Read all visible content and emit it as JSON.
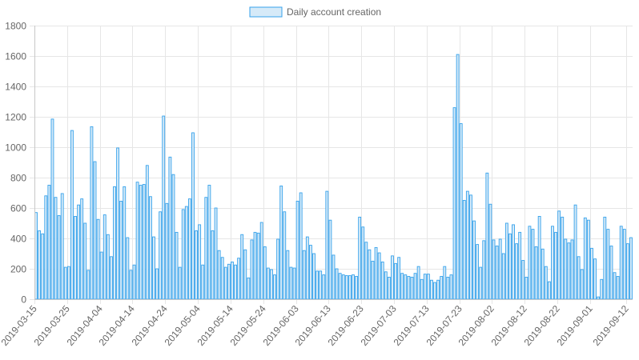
{
  "chart_data": {
    "type": "bar",
    "legend": {
      "label": "Daily account creation",
      "position": "top"
    },
    "colors": {
      "bar_fill": "#d6eaf8",
      "bar_stroke": "#36a2eb",
      "grid": "#e6e6e6",
      "axis": "#c8c8c8",
      "text": "#666666"
    },
    "ylim": [
      0,
      1800
    ],
    "y_ticks": [
      0,
      200,
      400,
      600,
      800,
      1000,
      1200,
      1400,
      1600,
      1800
    ],
    "grid": true,
    "x_start": "2019-03-15",
    "x_tick_labels": [
      "2019-03-15",
      "2019-03-25",
      "2019-04-04",
      "2019-04-14",
      "2019-04-24",
      "2019-05-04",
      "2019-05-14",
      "2019-05-24",
      "2019-06-03",
      "2019-06-13",
      "2019-06-23",
      "2019-07-03",
      "2019-07-13",
      "2019-07-23",
      "2019-08-02",
      "2019-08-12",
      "2019-08-22",
      "2019-09-01",
      "2019-09-12"
    ],
    "values": [
      570,
      450,
      430,
      680,
      750,
      1185,
      670,
      550,
      695,
      210,
      215,
      1110,
      545,
      620,
      660,
      500,
      190,
      1135,
      905,
      525,
      310,
      555,
      425,
      280,
      740,
      995,
      645,
      740,
      405,
      190,
      225,
      770,
      750,
      755,
      880,
      675,
      410,
      200,
      575,
      1205,
      630,
      935,
      820,
      440,
      210,
      590,
      610,
      660,
      1095,
      450,
      490,
      225,
      670,
      750,
      450,
      600,
      320,
      275,
      210,
      230,
      245,
      225,
      270,
      425,
      325,
      140,
      390,
      440,
      435,
      505,
      345,
      205,
      195,
      160,
      395,
      745,
      575,
      320,
      210,
      205,
      645,
      700,
      320,
      410,
      355,
      300,
      185,
      185,
      160,
      710,
      520,
      290,
      200,
      170,
      160,
      155,
      155,
      160,
      150,
      540,
      475,
      375,
      325,
      250,
      340,
      305,
      245,
      180,
      145,
      285,
      235,
      275,
      170,
      160,
      150,
      145,
      170,
      215,
      130,
      165,
      165,
      125,
      110,
      125,
      150,
      215,
      145,
      160,
      1260,
      1610,
      1155,
      650,
      710,
      685,
      515,
      360,
      210,
      385,
      830,
      625,
      390,
      350,
      395,
      300,
      500,
      430,
      490,
      365,
      440,
      255,
      145,
      480,
      460,
      345,
      545,
      330,
      215,
      115,
      480,
      440,
      580,
      540,
      395,
      370,
      390,
      620,
      280,
      195,
      535,
      520,
      335,
      265,
      15,
      130,
      540,
      460,
      350,
      175,
      150,
      480,
      460,
      365,
      405
    ]
  }
}
